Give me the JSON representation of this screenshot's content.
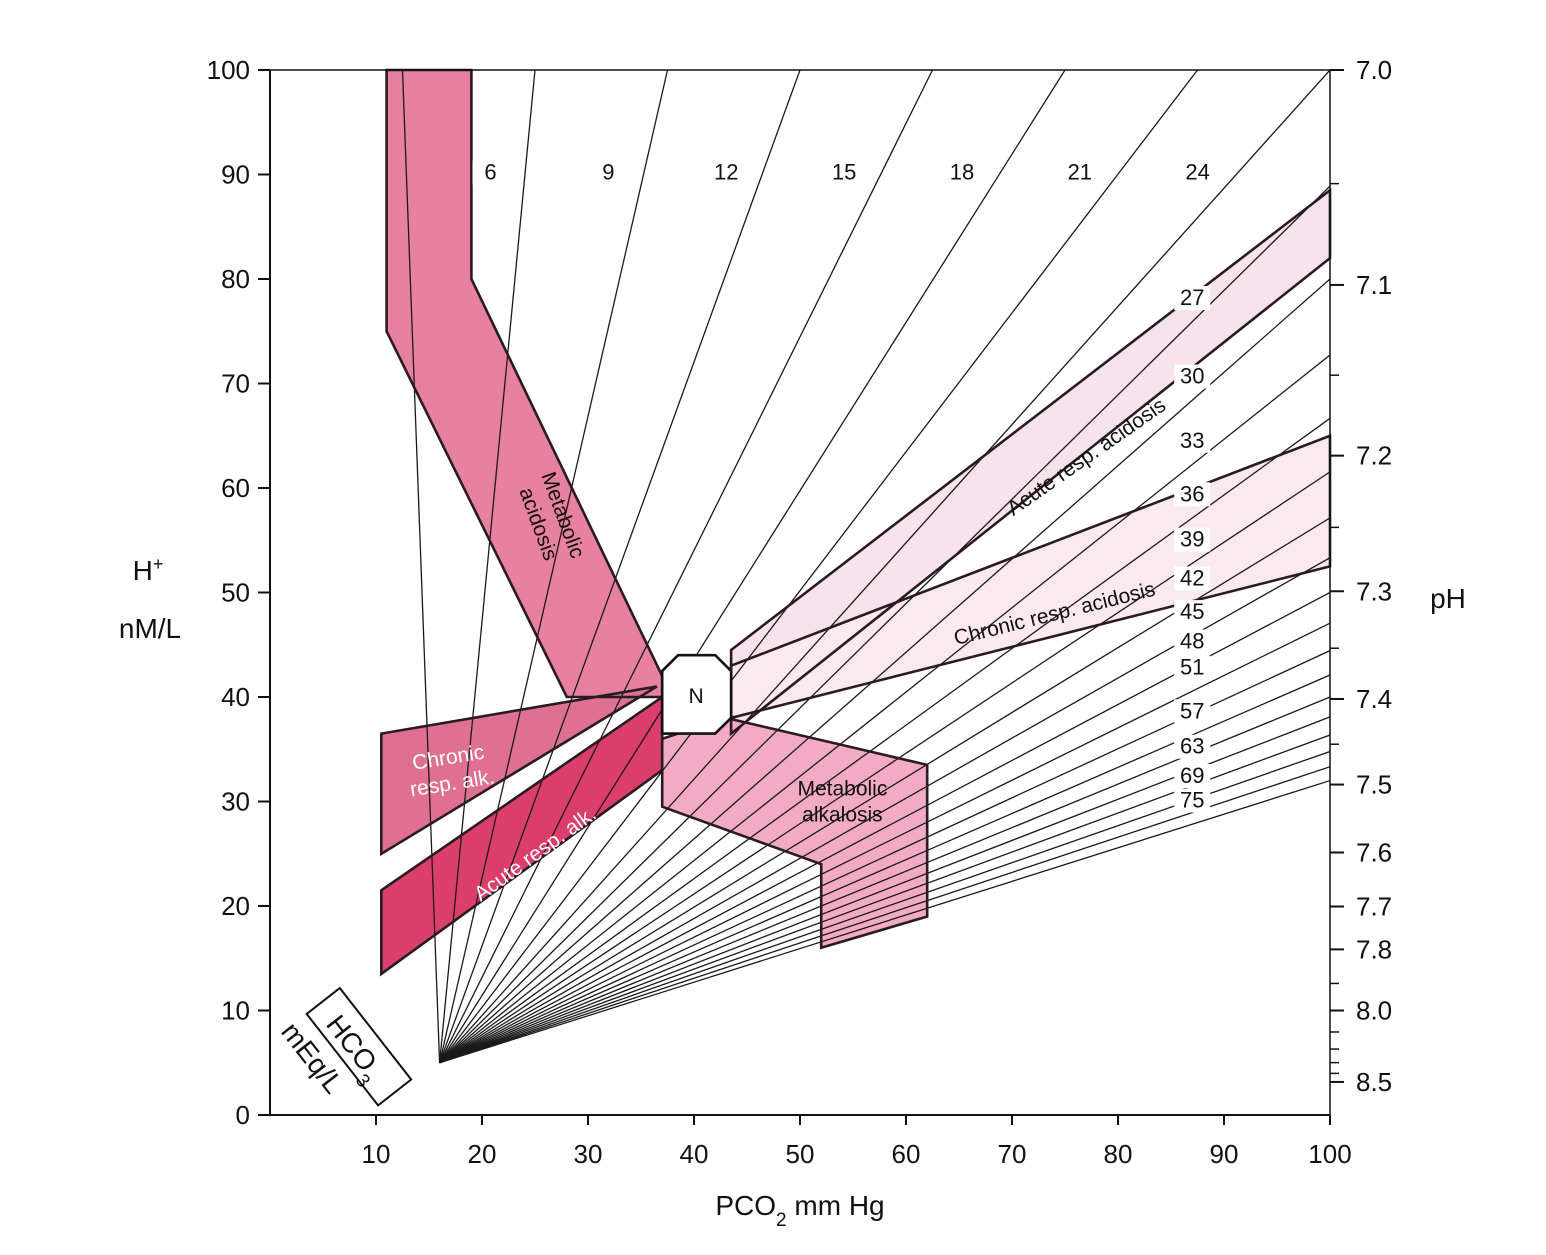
{
  "chart_data": {
    "type": "line",
    "x_axis": {
      "label_prefix": "PCO",
      "label_sub": "2",
      "label_suffix": " mm Hg",
      "range": [
        0,
        100
      ],
      "ticks": [
        10,
        20,
        30,
        40,
        50,
        60,
        70,
        80,
        90,
        100
      ]
    },
    "y_axis": {
      "label_base": "H",
      "label_sup": "+",
      "label_unit": "nM/L",
      "range": [
        0,
        100
      ],
      "ticks": [
        0,
        10,
        20,
        30,
        40,
        50,
        60,
        70,
        80,
        90,
        100
      ]
    },
    "y2_axis": {
      "label": "pH",
      "labels": [
        "7.0",
        "7.1",
        "7.2",
        "7.3",
        "7.4",
        "7.5",
        "7.6",
        "7.7",
        "7.8",
        "8.0",
        "8.5"
      ],
      "minor_ticks": [
        "7.05",
        "7.15",
        "7.25",
        "7.35",
        "7.45",
        "7.9",
        "8.1",
        "8.2",
        "8.3",
        "8.4"
      ]
    },
    "iso_lines": {
      "legend_main": "HCO",
      "legend_sub": "3",
      "legend_unit": "mEq/L",
      "values": [
        3,
        6,
        9,
        12,
        15,
        18,
        21,
        24,
        27,
        30,
        33,
        36,
        39,
        42,
        45,
        48,
        51,
        54,
        57,
        60,
        63,
        66,
        69,
        72,
        75
      ],
      "labeled": [
        6,
        9,
        12,
        15,
        18,
        21,
        24,
        27,
        30,
        33,
        36,
        39,
        42,
        45,
        48,
        51,
        57,
        63,
        69,
        75
      ]
    },
    "regions": [
      {
        "name": "metabolic-acidosis",
        "label_lines": [
          "Metabolic",
          "acidosis"
        ],
        "color": "#e8809f",
        "polygon": [
          [
            11,
            100
          ],
          [
            19,
            100
          ],
          [
            19,
            80
          ],
          [
            37,
            42
          ],
          [
            37,
            40
          ],
          [
            28,
            40
          ],
          [
            11,
            75
          ]
        ]
      },
      {
        "name": "chronic-resp-alk",
        "label_lines": [
          "Chronic",
          "resp. alk."
        ],
        "color": "#e07092",
        "polygon": [
          [
            10.5,
            36.5
          ],
          [
            36.5,
            41
          ],
          [
            10.5,
            25
          ]
        ]
      },
      {
        "name": "acute-resp-alk",
        "label_lines": [
          "Acute resp. alk."
        ],
        "color": "#dc3e6c",
        "polygon": [
          [
            10.5,
            21.5
          ],
          [
            37,
            40
          ],
          [
            37,
            33
          ],
          [
            10.5,
            13.5
          ]
        ]
      },
      {
        "name": "acute-resp-acidosis",
        "label_lines": [
          "Acute resp. acidosis"
        ],
        "color": "#f8e2ec",
        "polygon": [
          [
            43.5,
            44.5
          ],
          [
            100,
            88.5
          ],
          [
            100,
            82
          ],
          [
            43.5,
            36.5
          ]
        ]
      },
      {
        "name": "chronic-resp-acidosis",
        "label_lines": [
          "Chronic resp. acidosis"
        ],
        "color": "#fbe9f0",
        "polygon": [
          [
            43.5,
            43
          ],
          [
            100,
            65
          ],
          [
            100,
            52.5
          ],
          [
            43.5,
            38
          ]
        ]
      },
      {
        "name": "metabolic-alkalosis",
        "label_lines": [
          "Metabolic",
          "alkalosis"
        ],
        "color": "#f3aac5",
        "polygon": [
          [
            37,
            36
          ],
          [
            43,
            38
          ],
          [
            62,
            33.5
          ],
          [
            62,
            19
          ],
          [
            52,
            16
          ],
          [
            52,
            24
          ],
          [
            37,
            29.5
          ]
        ]
      }
    ],
    "normal_zone": {
      "label": "N",
      "polygon": [
        [
          38.5,
          44
        ],
        [
          42,
          44
        ],
        [
          43.5,
          42.5
        ],
        [
          43.5,
          38
        ],
        [
          42,
          36.5
        ],
        [
          37,
          36.5
        ],
        [
          37,
          42.5
        ]
      ]
    }
  }
}
